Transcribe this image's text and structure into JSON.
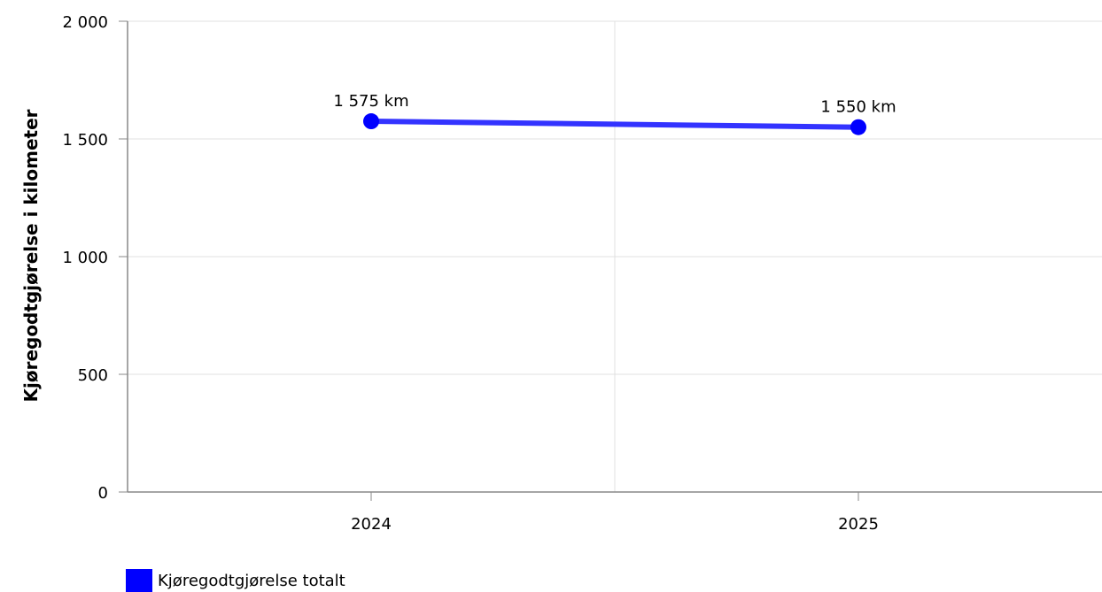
{
  "chart_data": {
    "type": "line",
    "title": "",
    "xlabel": "",
    "ylabel": "Kjøregodtgjørelse i kilometer",
    "categories": [
      "2024",
      "2025"
    ],
    "series": [
      {
        "name": "Kjøregodtgjørelse totalt",
        "values": [
          1575,
          1550
        ],
        "data_labels": [
          "1 575 km",
          "1 550 km"
        ],
        "color": "#0000ff"
      }
    ],
    "ylim": [
      0,
      2000
    ],
    "yticks": [
      0,
      500,
      1000,
      1500,
      2000
    ],
    "ytick_labels": [
      "0",
      "500",
      "1 000",
      "1 500",
      "2 000"
    ],
    "grid": true,
    "legend_position": "bottom-left",
    "colors": {
      "line": "#3333ff",
      "marker": "#0000ff",
      "grid": "#e0e0e0",
      "axis": "#888888"
    }
  }
}
